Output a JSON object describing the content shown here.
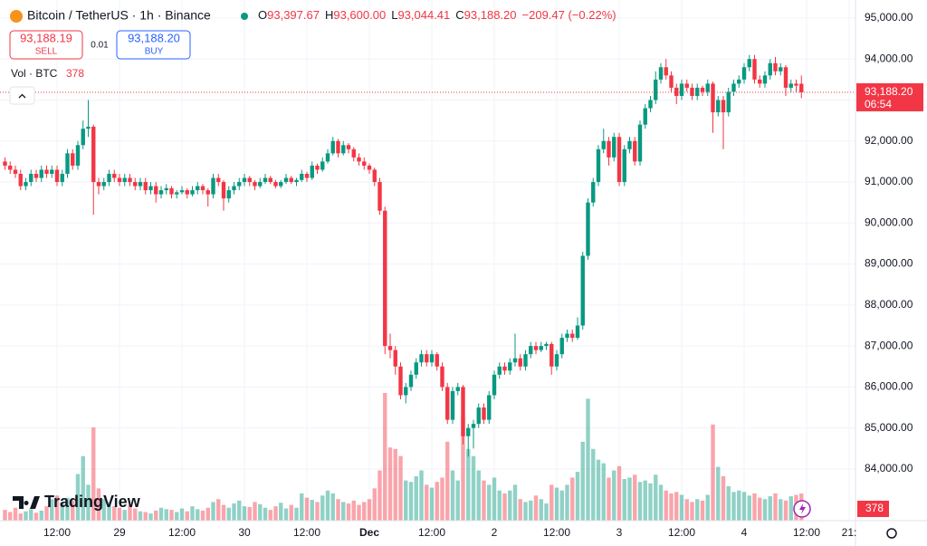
{
  "header": {
    "symbol": "Bitcoin / TetherUS · 1h · Binance",
    "ohlc": [
      {
        "key": "O",
        "value": "93,397.67"
      },
      {
        "key": "H",
        "value": "93,600.00"
      },
      {
        "key": "L",
        "value": "93,044.41"
      },
      {
        "key": "C",
        "value": "93,188.20"
      }
    ],
    "change": "−209.47 (−0.22%)"
  },
  "trade": {
    "sell_price": "93,188.19",
    "sell": "SELL",
    "spread": "0.01",
    "buy_price": "93,188.20",
    "buy": "BUY"
  },
  "chart_data": {
    "type": "candlestick",
    "volume_title": "Vol · BTC",
    "watermark": "TradingView",
    "last_price_label": "93,188.20",
    "countdown": "06:54",
    "colors": {
      "up": "#089981",
      "down": "#f23645"
    },
    "ylim": [
      82740,
      95440
    ],
    "yticks": [
      {
        "value": 84000,
        "label": "84,000.00"
      },
      {
        "value": 85000,
        "label": "85,000.00"
      },
      {
        "value": 86000,
        "label": "86,000.00"
      },
      {
        "value": 87000,
        "label": "87,000.00"
      },
      {
        "value": 88000,
        "label": "88,000.00"
      },
      {
        "value": 89000,
        "label": "89,000.00"
      },
      {
        "value": 90000,
        "label": "90,000.00"
      },
      {
        "value": 91000,
        "label": "91,000.00"
      },
      {
        "value": 92000,
        "label": "92,000.00"
      },
      {
        "value": 93000,
        "label": "93,000.00"
      },
      {
        "value": 94000,
        "label": "94,000.00"
      },
      {
        "value": 95000,
        "label": "95,000.00"
      }
    ],
    "xticks": [
      "12:00",
      "29",
      "12:00",
      "30",
      "12:00",
      "Dec",
      "12:00",
      "2",
      "12:00",
      "3",
      "12:00",
      "4",
      "12:00",
      "21:"
    ],
    "candles": [
      [
        91500,
        91600,
        91300,
        91400
      ],
      [
        91400,
        91500,
        91200,
        91300
      ],
      [
        91300,
        91400,
        91100,
        91200
      ],
      [
        91200,
        91300,
        90800,
        90900
      ],
      [
        90900,
        91100,
        90800,
        91000
      ],
      [
        91000,
        91300,
        90900,
        91200
      ],
      [
        91200,
        91300,
        91000,
        91100
      ],
      [
        91100,
        91400,
        91000,
        91300
      ],
      [
        91300,
        91400,
        91100,
        91200
      ],
      [
        91200,
        91400,
        91100,
        91300
      ],
      [
        91300,
        91400,
        90900,
        91000
      ],
      [
        91000,
        91300,
        90900,
        91200
      ],
      [
        91200,
        91800,
        91100,
        91700
      ],
      [
        91700,
        91800,
        91300,
        91400
      ],
      [
        91400,
        92000,
        91300,
        91900
      ],
      [
        91900,
        92500,
        91800,
        92300
      ],
      [
        92300,
        93000,
        92100,
        92350
      ],
      [
        92350,
        92400,
        90200,
        91000
      ],
      [
        91000,
        91100,
        90700,
        90900
      ],
      [
        90900,
        91100,
        90800,
        91000
      ],
      [
        91000,
        91300,
        90900,
        91200
      ],
      [
        91200,
        91300,
        91000,
        91100
      ],
      [
        91100,
        91200,
        90900,
        91000
      ],
      [
        91000,
        91200,
        90900,
        91100
      ],
      [
        91100,
        91200,
        90900,
        91000
      ],
      [
        91000,
        91100,
        90800,
        90900
      ],
      [
        90900,
        91100,
        90800,
        91000
      ],
      [
        91000,
        91100,
        90700,
        90800
      ],
      [
        90800,
        91000,
        90700,
        90900
      ],
      [
        90900,
        91000,
        90500,
        90700
      ],
      [
        90700,
        90900,
        90600,
        90800
      ],
      [
        90800,
        90950,
        90700,
        90850
      ],
      [
        90850,
        90900,
        90600,
        90700
      ],
      [
        90700,
        90800,
        90600,
        90750
      ],
      [
        90750,
        90900,
        90700,
        90800
      ],
      [
        90800,
        90850,
        90600,
        90700
      ],
      [
        90700,
        90900,
        90650,
        90800
      ],
      [
        90800,
        91000,
        90700,
        90900
      ],
      [
        90900,
        90950,
        90700,
        90800
      ],
      [
        90800,
        90850,
        90400,
        90700
      ],
      [
        90700,
        91200,
        90600,
        91100
      ],
      [
        91100,
        91200,
        90900,
        91000
      ],
      [
        91000,
        91050,
        90300,
        90600
      ],
      [
        90600,
        90900,
        90500,
        90800
      ],
      [
        90800,
        91000,
        90700,
        90900
      ],
      [
        90900,
        91100,
        90800,
        91000
      ],
      [
        91000,
        91200,
        90900,
        91100
      ],
      [
        91100,
        91150,
        90900,
        91000
      ],
      [
        91000,
        91050,
        90800,
        90900
      ],
      [
        90900,
        91100,
        90850,
        91000
      ],
      [
        91000,
        91200,
        90950,
        91100
      ],
      [
        91100,
        91150,
        90950,
        91000
      ],
      [
        91000,
        91050,
        90850,
        90900
      ],
      [
        90900,
        91050,
        90850,
        91000
      ],
      [
        91000,
        91200,
        90950,
        91100
      ],
      [
        91100,
        91150,
        90950,
        91000
      ],
      [
        91000,
        91100,
        90900,
        91050
      ],
      [
        91050,
        91300,
        91000,
        91200
      ],
      [
        91200,
        91250,
        91000,
        91100
      ],
      [
        91100,
        91500,
        91050,
        91400
      ],
      [
        91400,
        91450,
        91200,
        91300
      ],
      [
        91300,
        91600,
        91250,
        91500
      ],
      [
        91500,
        91800,
        91450,
        91700
      ],
      [
        91700,
        92100,
        91650,
        92000
      ],
      [
        92000,
        92050,
        91600,
        91700
      ],
      [
        91700,
        92000,
        91650,
        91900
      ],
      [
        91900,
        91950,
        91700,
        91800
      ],
      [
        91800,
        91850,
        91500,
        91600
      ],
      [
        91600,
        91700,
        91400,
        91500
      ],
      [
        91500,
        91600,
        91300,
        91400
      ],
      [
        91400,
        91450,
        91200,
        91300
      ],
      [
        91300,
        91350,
        90900,
        91000
      ],
      [
        91000,
        91100,
        90200,
        90300
      ],
      [
        90300,
        90400,
        86800,
        87000
      ],
      [
        87000,
        87300,
        86700,
        86900
      ],
      [
        86900,
        87000,
        86300,
        86500
      ],
      [
        86500,
        86600,
        85700,
        85800
      ],
      [
        85800,
        86100,
        85600,
        86000
      ],
      [
        86000,
        86400,
        85900,
        86300
      ],
      [
        86300,
        86700,
        86200,
        86600
      ],
      [
        86600,
        86900,
        86500,
        86800
      ],
      [
        86800,
        86900,
        86500,
        86600
      ],
      [
        86600,
        86900,
        86500,
        86800
      ],
      [
        86800,
        86850,
        86400,
        86500
      ],
      [
        86500,
        86600,
        85900,
        86000
      ],
      [
        86000,
        86100,
        85100,
        85200
      ],
      [
        85200,
        86000,
        85100,
        85900
      ],
      [
        85900,
        86100,
        85800,
        86000
      ],
      [
        86000,
        86050,
        84600,
        84800
      ],
      [
        84800,
        85100,
        84300,
        85000
      ],
      [
        85000,
        85200,
        84500,
        85100
      ],
      [
        85100,
        85600,
        85000,
        85500
      ],
      [
        85500,
        85600,
        85100,
        85200
      ],
      [
        85200,
        85900,
        85100,
        85800
      ],
      [
        85800,
        86400,
        85700,
        86300
      ],
      [
        86300,
        86600,
        86200,
        86500
      ],
      [
        86500,
        86600,
        86300,
        86400
      ],
      [
        86400,
        86700,
        86300,
        86600
      ],
      [
        86600,
        87300,
        86500,
        86700
      ],
      [
        86700,
        86800,
        86400,
        86500
      ],
      [
        86500,
        86900,
        86400,
        86800
      ],
      [
        86800,
        87100,
        86700,
        87000
      ],
      [
        87000,
        87100,
        86800,
        86900
      ],
      [
        86900,
        87100,
        86850,
        87000
      ],
      [
        87000,
        87100,
        86900,
        87050
      ],
      [
        87050,
        87100,
        86300,
        86500
      ],
      [
        86500,
        86900,
        86400,
        86800
      ],
      [
        86800,
        87300,
        86700,
        87200
      ],
      [
        87200,
        87400,
        87100,
        87300
      ],
      [
        87300,
        87400,
        87100,
        87200
      ],
      [
        87200,
        87700,
        87150,
        87500
      ],
      [
        87500,
        89300,
        87400,
        89200
      ],
      [
        89200,
        90600,
        89100,
        90500
      ],
      [
        90500,
        91100,
        90400,
        91000
      ],
      [
        91000,
        91900,
        90900,
        91800
      ],
      [
        91800,
        92300,
        91700,
        92000
      ],
      [
        92000,
        92100,
        91400,
        91600
      ],
      [
        91600,
        92200,
        91500,
        92100
      ],
      [
        92100,
        92200,
        90900,
        91000
      ],
      [
        91000,
        91900,
        90900,
        91800
      ],
      [
        91800,
        92100,
        91700,
        92000
      ],
      [
        92000,
        92100,
        91400,
        91500
      ],
      [
        91500,
        92500,
        91400,
        92400
      ],
      [
        92400,
        92900,
        92300,
        92800
      ],
      [
        92800,
        93100,
        92700,
        93000
      ],
      [
        93000,
        93700,
        92900,
        93500
      ],
      [
        93500,
        93900,
        93400,
        93800
      ],
      [
        93800,
        94000,
        93500,
        93600
      ],
      [
        93600,
        93700,
        93200,
        93300
      ],
      [
        93300,
        93400,
        92900,
        93100
      ],
      [
        93100,
        93500,
        93000,
        93400
      ],
      [
        93400,
        93500,
        93200,
        93300
      ],
      [
        93300,
        93400,
        93000,
        93100
      ],
      [
        93100,
        93400,
        93000,
        93300
      ],
      [
        93300,
        93350,
        93100,
        93200
      ],
      [
        93200,
        93500,
        93100,
        93400
      ],
      [
        93400,
        93450,
        92200,
        92700
      ],
      [
        92700,
        93100,
        92600,
        93000
      ],
      [
        93000,
        93100,
        91800,
        92700
      ],
      [
        92700,
        93300,
        92600,
        93200
      ],
      [
        93200,
        93500,
        93100,
        93400
      ],
      [
        93400,
        93600,
        93300,
        93500
      ],
      [
        93500,
        93900,
        93400,
        93800
      ],
      [
        93800,
        94100,
        93700,
        94000
      ],
      [
        94000,
        94100,
        93400,
        93500
      ],
      [
        93500,
        93600,
        93300,
        93400
      ],
      [
        93400,
        93700,
        93300,
        93600
      ],
      [
        93600,
        94000,
        93500,
        93900
      ],
      [
        93900,
        94050,
        93600,
        93700
      ],
      [
        93700,
        93900,
        93600,
        93800
      ],
      [
        93800,
        93850,
        93100,
        93300
      ],
      [
        93300,
        93500,
        93200,
        93400
      ],
      [
        93400,
        93500,
        93200,
        93350
      ],
      [
        93397.67,
        93600,
        93044.41,
        93188.2
      ]
    ],
    "volume": [
      150,
      120,
      180,
      100,
      130,
      160,
      110,
      140,
      200,
      300,
      350,
      250,
      320,
      280,
      650,
      900,
      500,
      1300,
      450,
      300,
      260,
      200,
      180,
      150,
      220,
      170,
      130,
      120,
      100,
      140,
      180,
      160,
      150,
      120,
      170,
      130,
      200,
      160,
      140,
      180,
      260,
      300,
      220,
      180,
      240,
      280,
      200,
      190,
      260,
      230,
      180,
      150,
      200,
      250,
      170,
      220,
      180,
      380,
      320,
      290,
      260,
      350,
      420,
      380,
      300,
      260,
      240,
      280,
      220,
      260,
      300,
      450,
      700,
      1780,
      1020,
      1000,
      900,
      560,
      540,
      620,
      700,
      500,
      460,
      540,
      600,
      1100,
      700,
      560,
      1450,
      1000,
      900,
      700,
      560,
      500,
      600,
      420,
      380,
      420,
      500,
      300,
      260,
      280,
      350,
      300,
      240,
      500,
      460,
      420,
      500,
      600,
      680,
      1100,
      1700,
      1000,
      850,
      800,
      600,
      700,
      760,
      580,
      600,
      640,
      540,
      560,
      520,
      640,
      500,
      420,
      380,
      400,
      360,
      300,
      260,
      300,
      280,
      360,
      1340,
      750,
      620,
      480,
      400,
      420,
      400,
      350,
      380,
      320,
      300,
      340,
      380,
      300,
      280,
      340,
      360,
      378
    ]
  }
}
